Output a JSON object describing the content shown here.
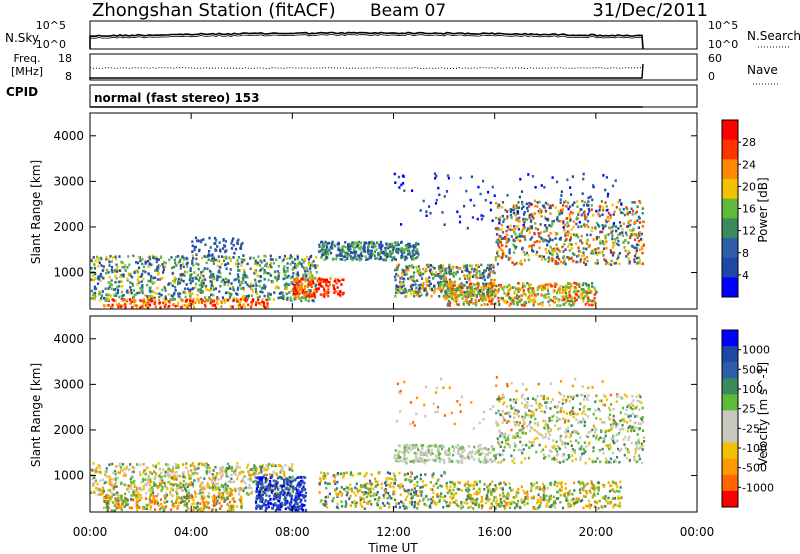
{
  "header": {
    "station": "Zhongshan Station (fitACF)",
    "beam": "Beam 07",
    "date": "31/Dec/2011"
  },
  "noise_panel": {
    "left_label": "N.Sky",
    "right_label": "N.Search",
    "left_ticks": [
      "10^5",
      "10^0"
    ],
    "right_ticks": [
      "10^5",
      "10^0"
    ]
  },
  "freq_panel": {
    "label_line1": "Freq.",
    "label_line2": "[MHz]",
    "left_ticks": [
      "18",
      "8"
    ],
    "right_ticks": [
      "60",
      "0"
    ],
    "right_label": "Nave"
  },
  "cpid": {
    "label": "CPID",
    "value": "normal (fast stereo) 153"
  },
  "range_axis": {
    "label": "Slant Range [km]",
    "ticks": [
      "4000",
      "3000",
      "2000",
      "1000"
    ]
  },
  "time_axis": {
    "label": "Time UT",
    "ticks": [
      "00:00",
      "04:00",
      "08:00",
      "12:00",
      "16:00",
      "20:00",
      "00:00"
    ]
  },
  "colors": {
    "power": [
      "#0000ff",
      "#1f48a6",
      "#2e5ea8",
      "#3a8a5c",
      "#5fba3a",
      "#f2c200",
      "#ff8800",
      "#ff3300",
      "#ff0000"
    ],
    "velocity": [
      "#ff0000",
      "#ff6600",
      "#ff9900",
      "#f2c200",
      "#c8c8be",
      "#c8c8be",
      "#5fba3a",
      "#3a8a5c",
      "#2e5ea8",
      "#1f48a6",
      "#0000ff"
    ]
  },
  "chart_data": [
    {
      "type": "heatmap",
      "title": "Power",
      "colorbar_label": "Power [dB]",
      "colorbar_ticks": [
        "28",
        "24",
        "20",
        "16",
        "12",
        "8",
        "4"
      ],
      "xlim": [
        "00:00",
        "24:00"
      ],
      "ylim": [
        200,
        4500
      ],
      "ylabel": "Slant Range [km]",
      "xlabel": "Time UT"
    },
    {
      "type": "heatmap",
      "title": "Velocity",
      "colorbar_label": "Velocity [m s^-1]",
      "colorbar_ticks": [
        "1000",
        "500",
        "100",
        "25",
        "-25",
        "-100",
        "-500",
        "-1000"
      ],
      "xlim": [
        "00:00",
        "24:00"
      ],
      "ylim": [
        200,
        4500
      ],
      "ylabel": "Slant Range [km]",
      "xlabel": "Time UT"
    }
  ]
}
